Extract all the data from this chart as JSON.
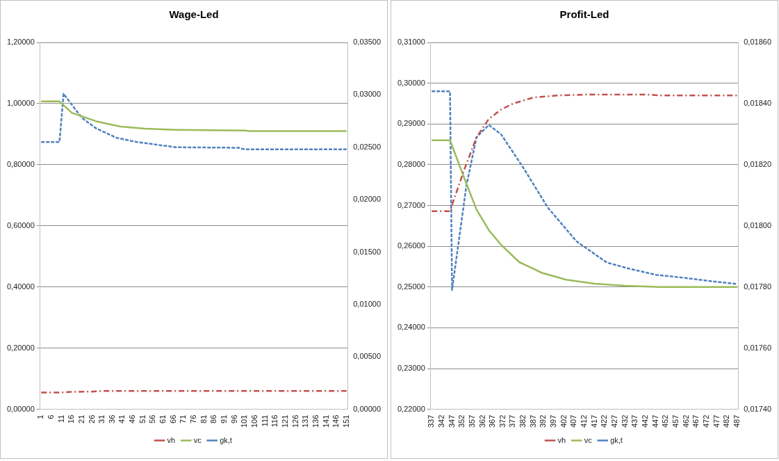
{
  "chart_data": [
    {
      "type": "line",
      "title": "Wage-Led",
      "legend": "bottom",
      "grid": "y",
      "marker": "none",
      "xlim": [
        0.5,
        151.5
      ],
      "xticks": [
        1,
        6,
        11,
        16,
        21,
        26,
        31,
        36,
        41,
        46,
        51,
        56,
        61,
        66,
        71,
        76,
        81,
        86,
        91,
        96,
        101,
        106,
        111,
        116,
        121,
        126,
        131,
        136,
        141,
        146,
        151
      ],
      "ylim": [
        0,
        1.2
      ],
      "yticks": [
        {
          "value": 0,
          "label": "0,00000"
        },
        {
          "value": 0.2,
          "label": "0,20000"
        },
        {
          "value": 0.4,
          "label": "0,40000"
        },
        {
          "value": 0.6,
          "label": "0,60000"
        },
        {
          "value": 0.8,
          "label": "0,80000"
        },
        {
          "value": 1.0,
          "label": "1,00000"
        },
        {
          "value": 1.2,
          "label": "1,20000"
        }
      ],
      "y2lim": [
        0,
        0.035
      ],
      "y2ticks": [
        {
          "value": 0,
          "label": "0,00000"
        },
        {
          "value": 0.005,
          "label": "0,00500"
        },
        {
          "value": 0.01,
          "label": "0,01000"
        },
        {
          "value": 0.015,
          "label": "0,01500"
        },
        {
          "value": 0.02,
          "label": "0,02000"
        },
        {
          "value": 0.025,
          "label": "0,02500"
        },
        {
          "value": 0.03,
          "label": "0,03000"
        },
        {
          "value": 0.035,
          "label": "0,03500"
        }
      ],
      "series": [
        {
          "name": "vh",
          "color": "#c0504d",
          "line_style": "dashdot",
          "x": [
            1,
            11,
            16,
            26,
            31,
            151
          ],
          "values": [
            0.055,
            0.055,
            0.057,
            0.058,
            0.06,
            0.06
          ]
        },
        {
          "name": "vc",
          "color": "#9bbb59",
          "line_style": "solid",
          "x": [
            1,
            10,
            16,
            28,
            40,
            52,
            67,
            101,
            103,
            151
          ],
          "values": [
            1.007,
            1.007,
            0.97,
            0.942,
            0.925,
            0.918,
            0.914,
            0.912,
            0.91,
            0.91
          ]
        },
        {
          "name": "gk,t",
          "color": "#4f81bd",
          "line_style": "dashed",
          "axis": "y2",
          "x": [
            1,
            10,
            12,
            21,
            28,
            38,
            48,
            67,
            98,
            101,
            151
          ],
          "values": [
            0.0255,
            0.0255,
            0.0301,
            0.0278,
            0.0268,
            0.0259,
            0.0255,
            0.025,
            0.02495,
            0.0248,
            0.0248
          ]
        }
      ]
    },
    {
      "type": "line",
      "title": "Profit-Led",
      "legend": "bottom",
      "grid": "y",
      "marker": "none",
      "xlim": [
        336.5,
        487.5
      ],
      "xticks": [
        337,
        342,
        347,
        352,
        357,
        362,
        367,
        372,
        377,
        382,
        387,
        392,
        397,
        402,
        407,
        412,
        417,
        422,
        427,
        432,
        437,
        442,
        447,
        452,
        457,
        462,
        467,
        472,
        477,
        482,
        487
      ],
      "ylim": [
        0.22,
        0.31
      ],
      "yticks": [
        {
          "value": 0.22,
          "label": "0,22000"
        },
        {
          "value": 0.23,
          "label": "0,23000"
        },
        {
          "value": 0.24,
          "label": "0,24000"
        },
        {
          "value": 0.25,
          "label": "0,25000"
        },
        {
          "value": 0.26,
          "label": "0,26000"
        },
        {
          "value": 0.27,
          "label": "0,27000"
        },
        {
          "value": 0.28,
          "label": "0,28000"
        },
        {
          "value": 0.29,
          "label": "0,29000"
        },
        {
          "value": 0.3,
          "label": "0,30000"
        },
        {
          "value": 0.31,
          "label": "0,31000"
        }
      ],
      "y2lim": [
        0.0174,
        0.0186
      ],
      "y2ticks": [
        {
          "value": 0.0174,
          "label": "0,01740"
        },
        {
          "value": 0.0176,
          "label": "0,01760"
        },
        {
          "value": 0.0178,
          "label": "0,01780"
        },
        {
          "value": 0.018,
          "label": "0,01800"
        },
        {
          "value": 0.0182,
          "label": "0,01820"
        },
        {
          "value": 0.0184,
          "label": "0,01840"
        },
        {
          "value": 0.0186,
          "label": "0,01860"
        }
      ],
      "series": [
        {
          "name": "vh",
          "color": "#c0504d",
          "line_style": "dashdot",
          "x": [
            337,
            346,
            348,
            353,
            359,
            365,
            371,
            377,
            387,
            399,
            413,
            443,
            449,
            487
          ],
          "values": [
            0.2686,
            0.2686,
            0.2716,
            0.2788,
            0.2867,
            0.2912,
            0.2935,
            0.295,
            0.2965,
            0.297,
            0.2972,
            0.2972,
            0.297,
            0.297
          ]
        },
        {
          "name": "vc",
          "color": "#9bbb59",
          "line_style": "solid",
          "x": [
            337,
            346,
            353,
            359,
            365,
            371,
            380,
            391,
            403,
            417,
            432,
            449,
            487
          ],
          "values": [
            0.286,
            0.286,
            0.2767,
            0.269,
            0.264,
            0.2604,
            0.2561,
            0.2535,
            0.2518,
            0.2508,
            0.2503,
            0.25,
            0.25
          ]
        },
        {
          "name": "gk,t",
          "color": "#4f81bd",
          "line_style": "dashed",
          "axis": "y2",
          "x": [
            337,
            346,
            347,
            354,
            359,
            365,
            371,
            382,
            394,
            408,
            423,
            434,
            447,
            461,
            473,
            487
          ],
          "values": [
            0.01844,
            0.01844,
            0.01779,
            0.01813,
            0.01829,
            0.01833,
            0.0183,
            0.01819,
            0.01806,
            0.01795,
            0.01788,
            0.01786,
            0.01784,
            0.01783,
            0.01782,
            0.01781
          ]
        }
      ]
    }
  ]
}
